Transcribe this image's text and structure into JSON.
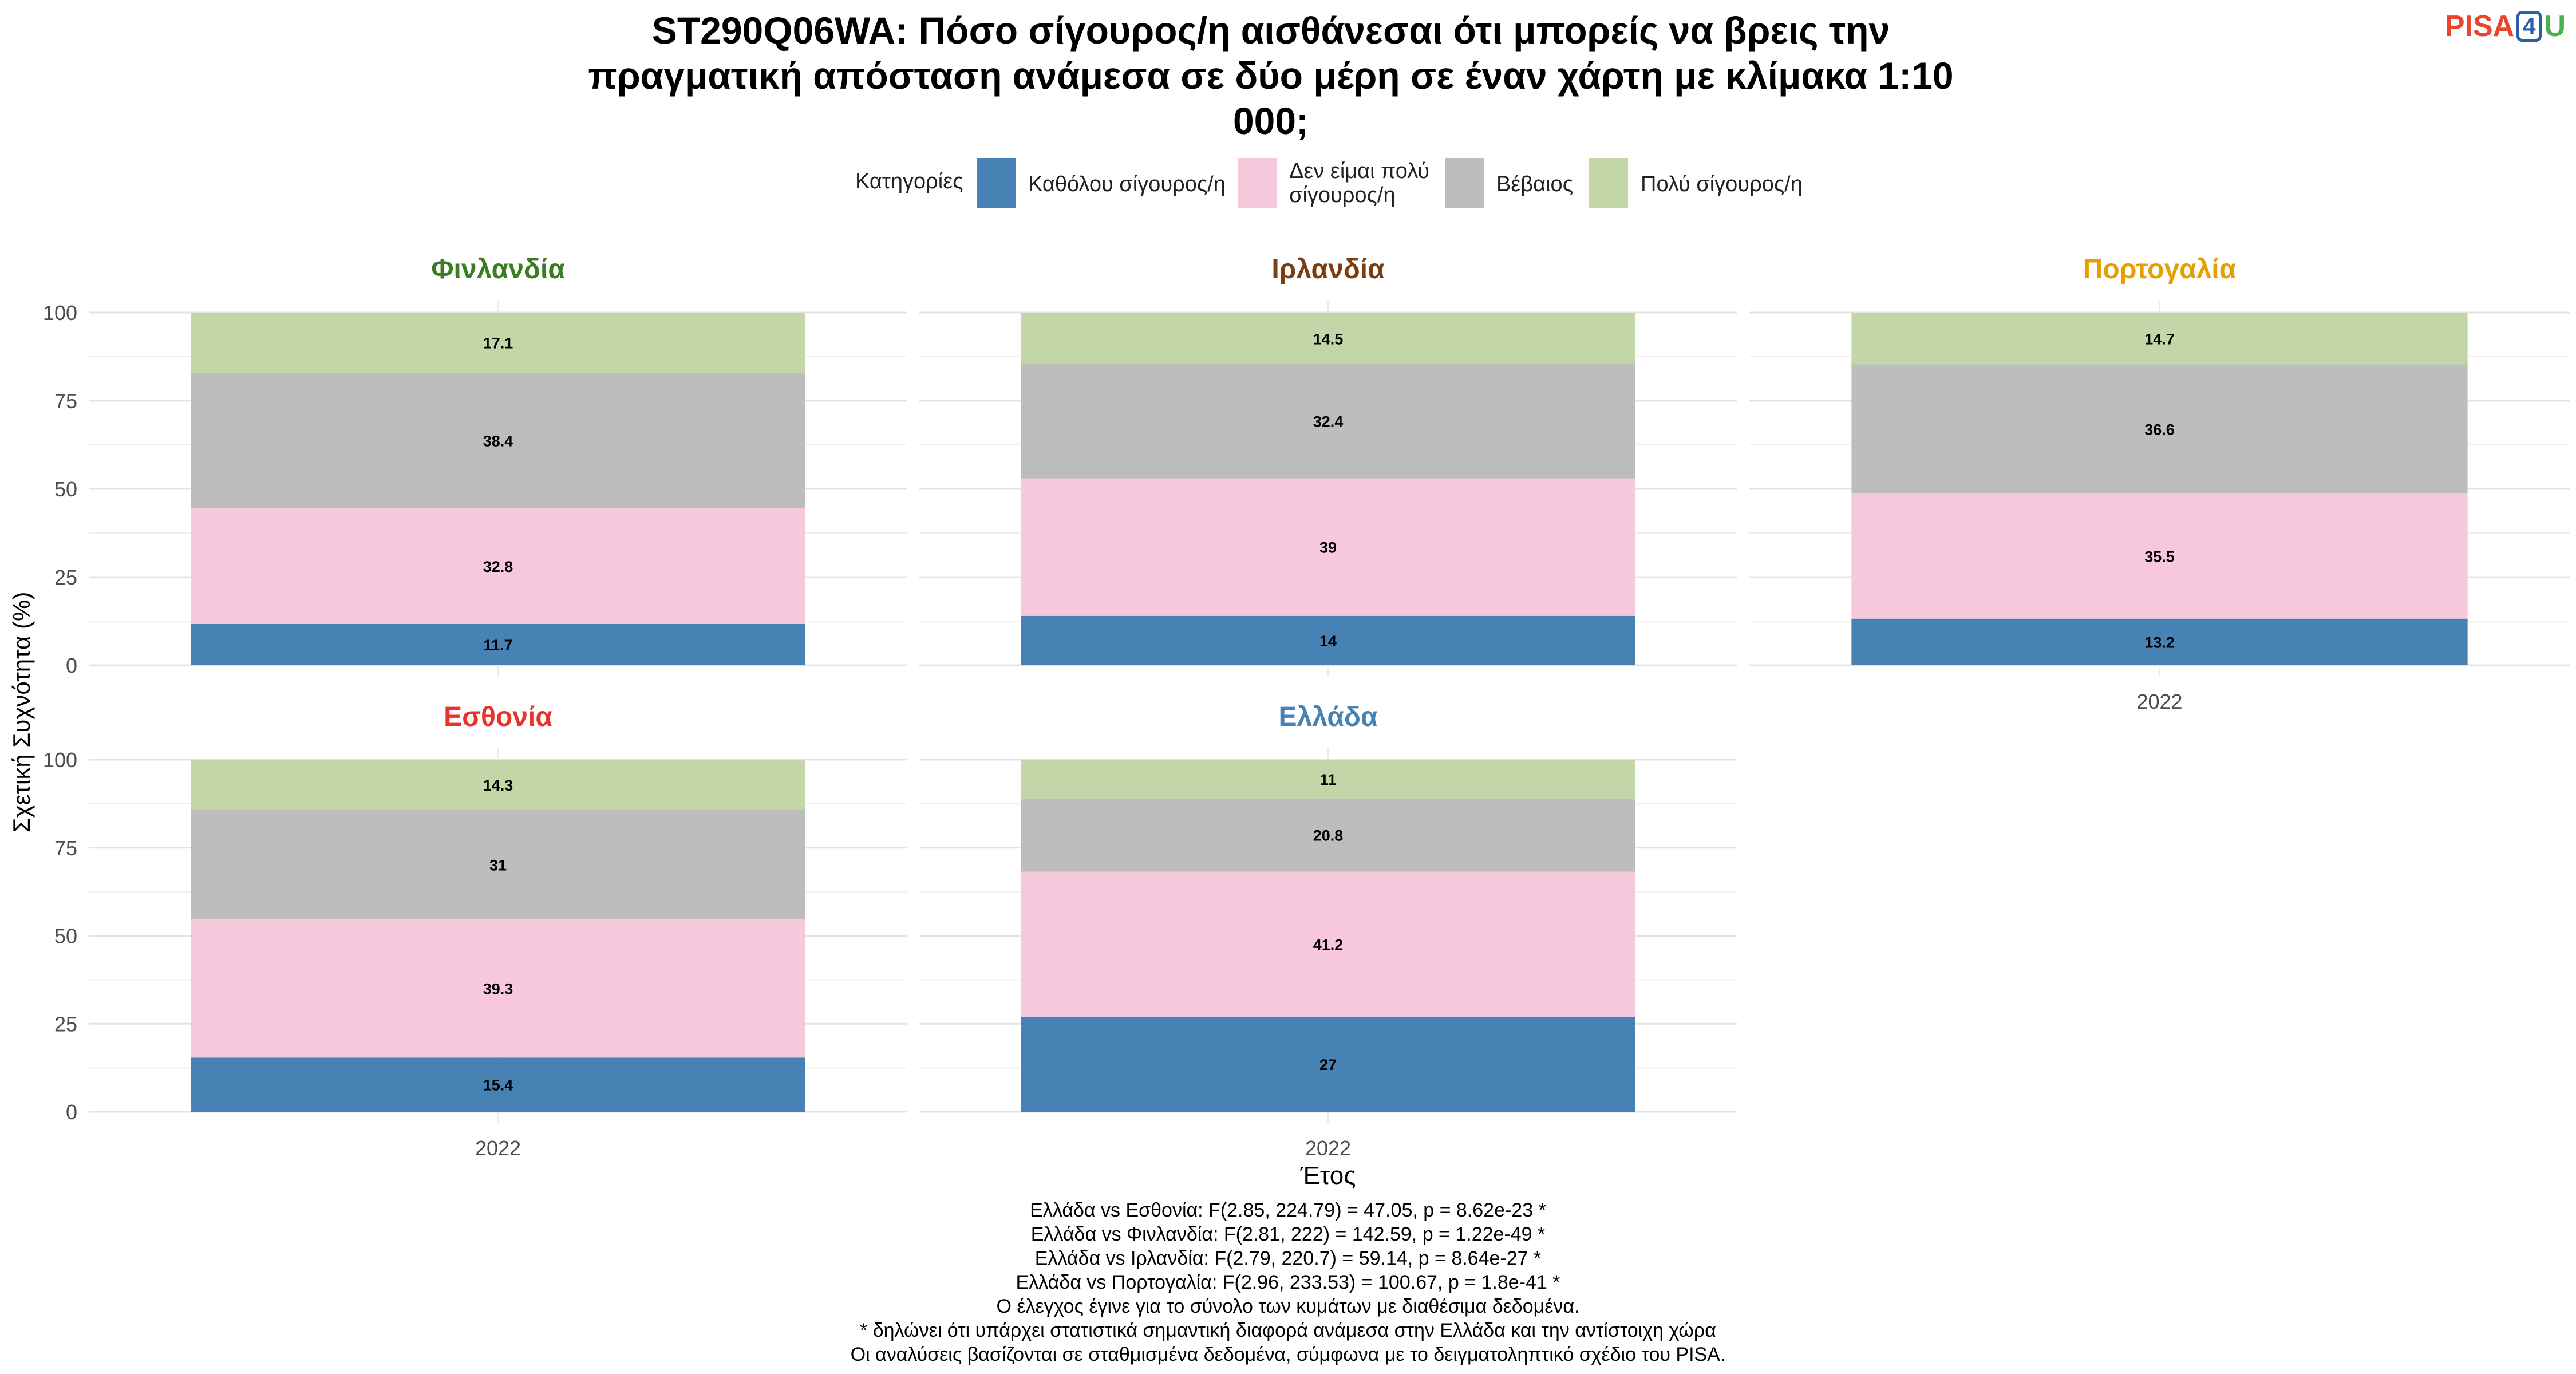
{
  "title": "ST290Q06WA: Πόσο σίγουρος/η αισθάνεσαι ότι μπορείς να βρεις την πραγματική απόσταση ανάμεσα σε δύο μέρη σε έναν χάρτη με κλίμακα 1:10 000;",
  "title_lines": [
    "ST290Q06WA: Πόσο σίγουρος/η αισθάνεσαι ότι μπορείς να βρεις την",
    "πραγματική απόσταση ανάμεσα σε δύο μέρη σε έναν χάρτη με κλίμακα 1:10",
    "000;"
  ],
  "logo": {
    "p": "PISA",
    "four": "4",
    "u": "U"
  },
  "legend": {
    "title": "Κατηγορίες",
    "items": [
      {
        "label": "Καθόλου σίγουρος/η",
        "color": "#4682b4"
      },
      {
        "label": "Δεν είμαι πολύ σίγουρος/η",
        "lines": [
          "Δεν είμαι πολύ",
          "σίγουρος/η"
        ],
        "color": "#f7c8dc"
      },
      {
        "label": "Βέβαιος",
        "color": "#bdbdbd"
      },
      {
        "label": "Πολύ σίγουρος/η",
        "color": "#c2d6a8"
      }
    ]
  },
  "chart_data": {
    "type": "bar",
    "stacked": true,
    "ylabel": "Σχετική Συχνότητα (%)",
    "xlabel": "Έτος",
    "ylim": [
      0,
      100
    ],
    "yticks": [
      0,
      25,
      50,
      75,
      100
    ],
    "categories": [
      "2022"
    ],
    "series_names": [
      "Καθόλου σίγουρος/η",
      "Δεν είμαι πολύ σίγουρος/η",
      "Βέβαιος",
      "Πολύ σίγουρος/η"
    ],
    "colors": [
      "#4682b4",
      "#f7c8dc",
      "#bdbdbd",
      "#c2d6a8"
    ],
    "panels": [
      {
        "country": "Φινλανδία",
        "color": "#3a7d22",
        "values": [
          11.7,
          32.8,
          38.4,
          17.1
        ],
        "labels": [
          "11.7",
          "32.8",
          "38.4",
          "17.1"
        ],
        "show_x": false
      },
      {
        "country": "Ιρλανδία",
        "color": "#7a3e12",
        "values": [
          14,
          39,
          32.4,
          14.5
        ],
        "labels": [
          "14",
          "39",
          "32.4",
          "14.5"
        ],
        "show_x": false
      },
      {
        "country": "Πορτογαλία",
        "color": "#e69f00",
        "values": [
          13.2,
          35.5,
          36.6,
          14.7
        ],
        "labels": [
          "13.2",
          "35.5",
          "36.6",
          "14.7"
        ],
        "show_x": true
      },
      {
        "country": "Εσθονία",
        "color": "#e8332a",
        "values": [
          15.4,
          39.3,
          31,
          14.3
        ],
        "labels": [
          "15.4",
          "39.3",
          "31",
          "14.3"
        ],
        "show_x": true
      },
      {
        "country": "Ελλάδα",
        "color": "#4682b4",
        "values": [
          27,
          41.2,
          20.8,
          11
        ],
        "labels": [
          "27",
          "41.2",
          "20.8",
          "11"
        ],
        "show_x": true
      }
    ]
  },
  "footer_lines": [
    "Ελλάδα vs Εσθονία: F(2.85, 224.79) = 47.05, p = 8.62e-23 *",
    "Ελλάδα vs Φινλανδία: F(2.81, 222) = 142.59, p = 1.22e-49 *",
    "Ελλάδα vs Ιρλανδία: F(2.79, 220.7) = 59.14, p = 8.64e-27 *",
    "Ελλάδα vs Πορτογαλία: F(2.96, 233.53) = 100.67, p = 1.8e-41 *",
    "Ο έλεγχος έγινε για το σύνολο των κυμάτων με διαθέσιμα δεδομένα.",
    "* δηλώνει ότι υπάρχει στατιστικά σημαντική διαφορά ανάμεσα στην Ελλάδα και την αντίστοιχη χώρα",
    "Οι αναλύσεις βασίζονται σε σταθμισμένα δεδομένα, σύμφωνα με το δειγματοληπτικό σχέδιο του PISA."
  ]
}
